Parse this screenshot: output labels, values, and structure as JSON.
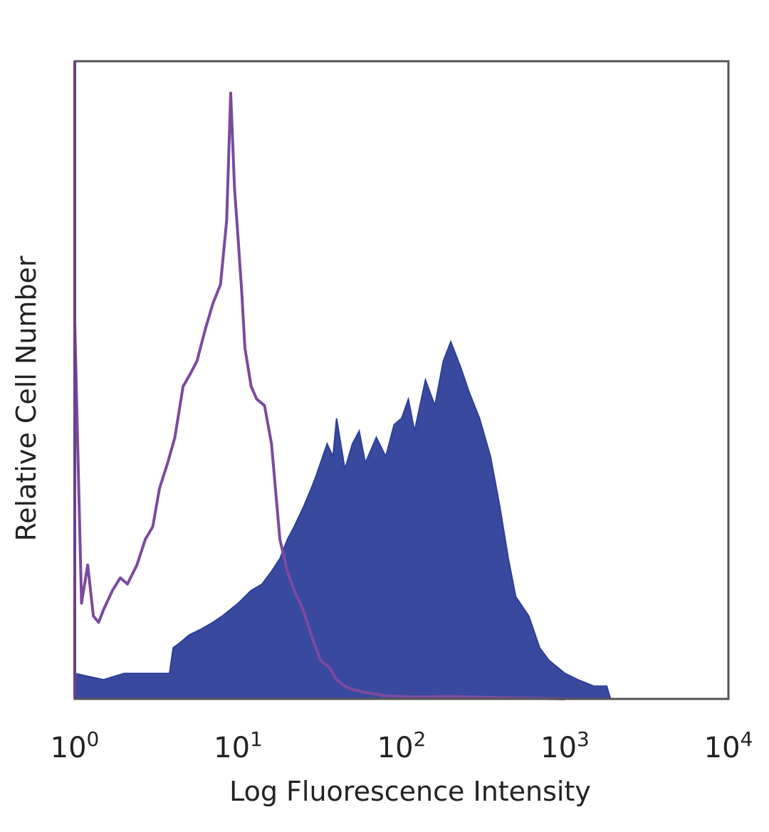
{
  "chart_data": {
    "type": "area",
    "xlabel": "Log Fluorescence Intensity",
    "ylabel": "Relative Cell Number",
    "x_scale": "log",
    "xlim": [
      1,
      10000
    ],
    "ylim": [
      0,
      1
    ],
    "x_ticks": [
      {
        "base": "10",
        "exp": "0",
        "value": 1
      },
      {
        "base": "10",
        "exp": "1",
        "value": 10
      },
      {
        "base": "10",
        "exp": "2",
        "value": 100
      },
      {
        "base": "10",
        "exp": "3",
        "value": 1000
      },
      {
        "base": "10",
        "exp": "4",
        "value": 10000
      }
    ],
    "series": [
      {
        "style": "outline",
        "color": "#7b4a9e",
        "x": [
          1.0,
          1.1,
          1.2,
          1.3,
          1.4,
          1.5,
          1.7,
          1.9,
          2.1,
          2.4,
          2.7,
          3.0,
          3.3,
          3.7,
          4.1,
          4.6,
          5.1,
          5.6,
          6.3,
          7.0,
          7.8,
          8.5,
          9.0,
          9.5,
          10.0,
          10.5,
          11.0,
          12.0,
          13.0,
          14.5,
          16.0,
          18.0,
          20.0,
          22.0,
          25.0,
          28.0,
          32.0,
          36.0,
          40.0,
          45.0,
          50.0,
          60.0,
          80.0,
          120.0,
          200.0,
          400.0,
          1000.0
        ],
        "y": [
          0.59,
          0.15,
          0.21,
          0.13,
          0.12,
          0.14,
          0.17,
          0.19,
          0.18,
          0.21,
          0.25,
          0.27,
          0.33,
          0.37,
          0.41,
          0.49,
          0.51,
          0.53,
          0.58,
          0.62,
          0.65,
          0.75,
          0.95,
          0.8,
          0.72,
          0.64,
          0.55,
          0.49,
          0.47,
          0.46,
          0.4,
          0.25,
          0.2,
          0.17,
          0.14,
          0.1,
          0.06,
          0.05,
          0.03,
          0.02,
          0.015,
          0.01,
          0.005,
          0.003,
          0.004,
          0.002,
          0.0
        ]
      },
      {
        "style": "filled",
        "color": "#2e3f99",
        "x": [
          1.0,
          1.5,
          2.0,
          3.0,
          3.8,
          4.0,
          4.5,
          5.0,
          6.0,
          7.0,
          8.0,
          10.0,
          12.0,
          14.0,
          16.0,
          18.0,
          20.0,
          22.0,
          25.0,
          28.0,
          30.0,
          35.0,
          38.0,
          40.0,
          45.0,
          50.0,
          55.0,
          60.0,
          70.0,
          80.0,
          90.0,
          100.0,
          110.0,
          120.0,
          140.0,
          160.0,
          180.0,
          200.0,
          230.0,
          260.0,
          300.0,
          350.0,
          400.0,
          450.0,
          500.0,
          600.0,
          700.0,
          800.0,
          1000.0,
          1200.0,
          1500.0,
          1800.0,
          1900.0
        ],
        "y": [
          0.04,
          0.03,
          0.04,
          0.04,
          0.04,
          0.08,
          0.09,
          0.1,
          0.11,
          0.12,
          0.13,
          0.15,
          0.17,
          0.18,
          0.2,
          0.22,
          0.25,
          0.27,
          0.3,
          0.33,
          0.35,
          0.4,
          0.38,
          0.44,
          0.36,
          0.4,
          0.42,
          0.37,
          0.41,
          0.38,
          0.43,
          0.44,
          0.47,
          0.42,
          0.5,
          0.46,
          0.53,
          0.56,
          0.52,
          0.48,
          0.44,
          0.38,
          0.3,
          0.22,
          0.16,
          0.13,
          0.08,
          0.06,
          0.04,
          0.03,
          0.02,
          0.02,
          0.0
        ]
      }
    ]
  }
}
